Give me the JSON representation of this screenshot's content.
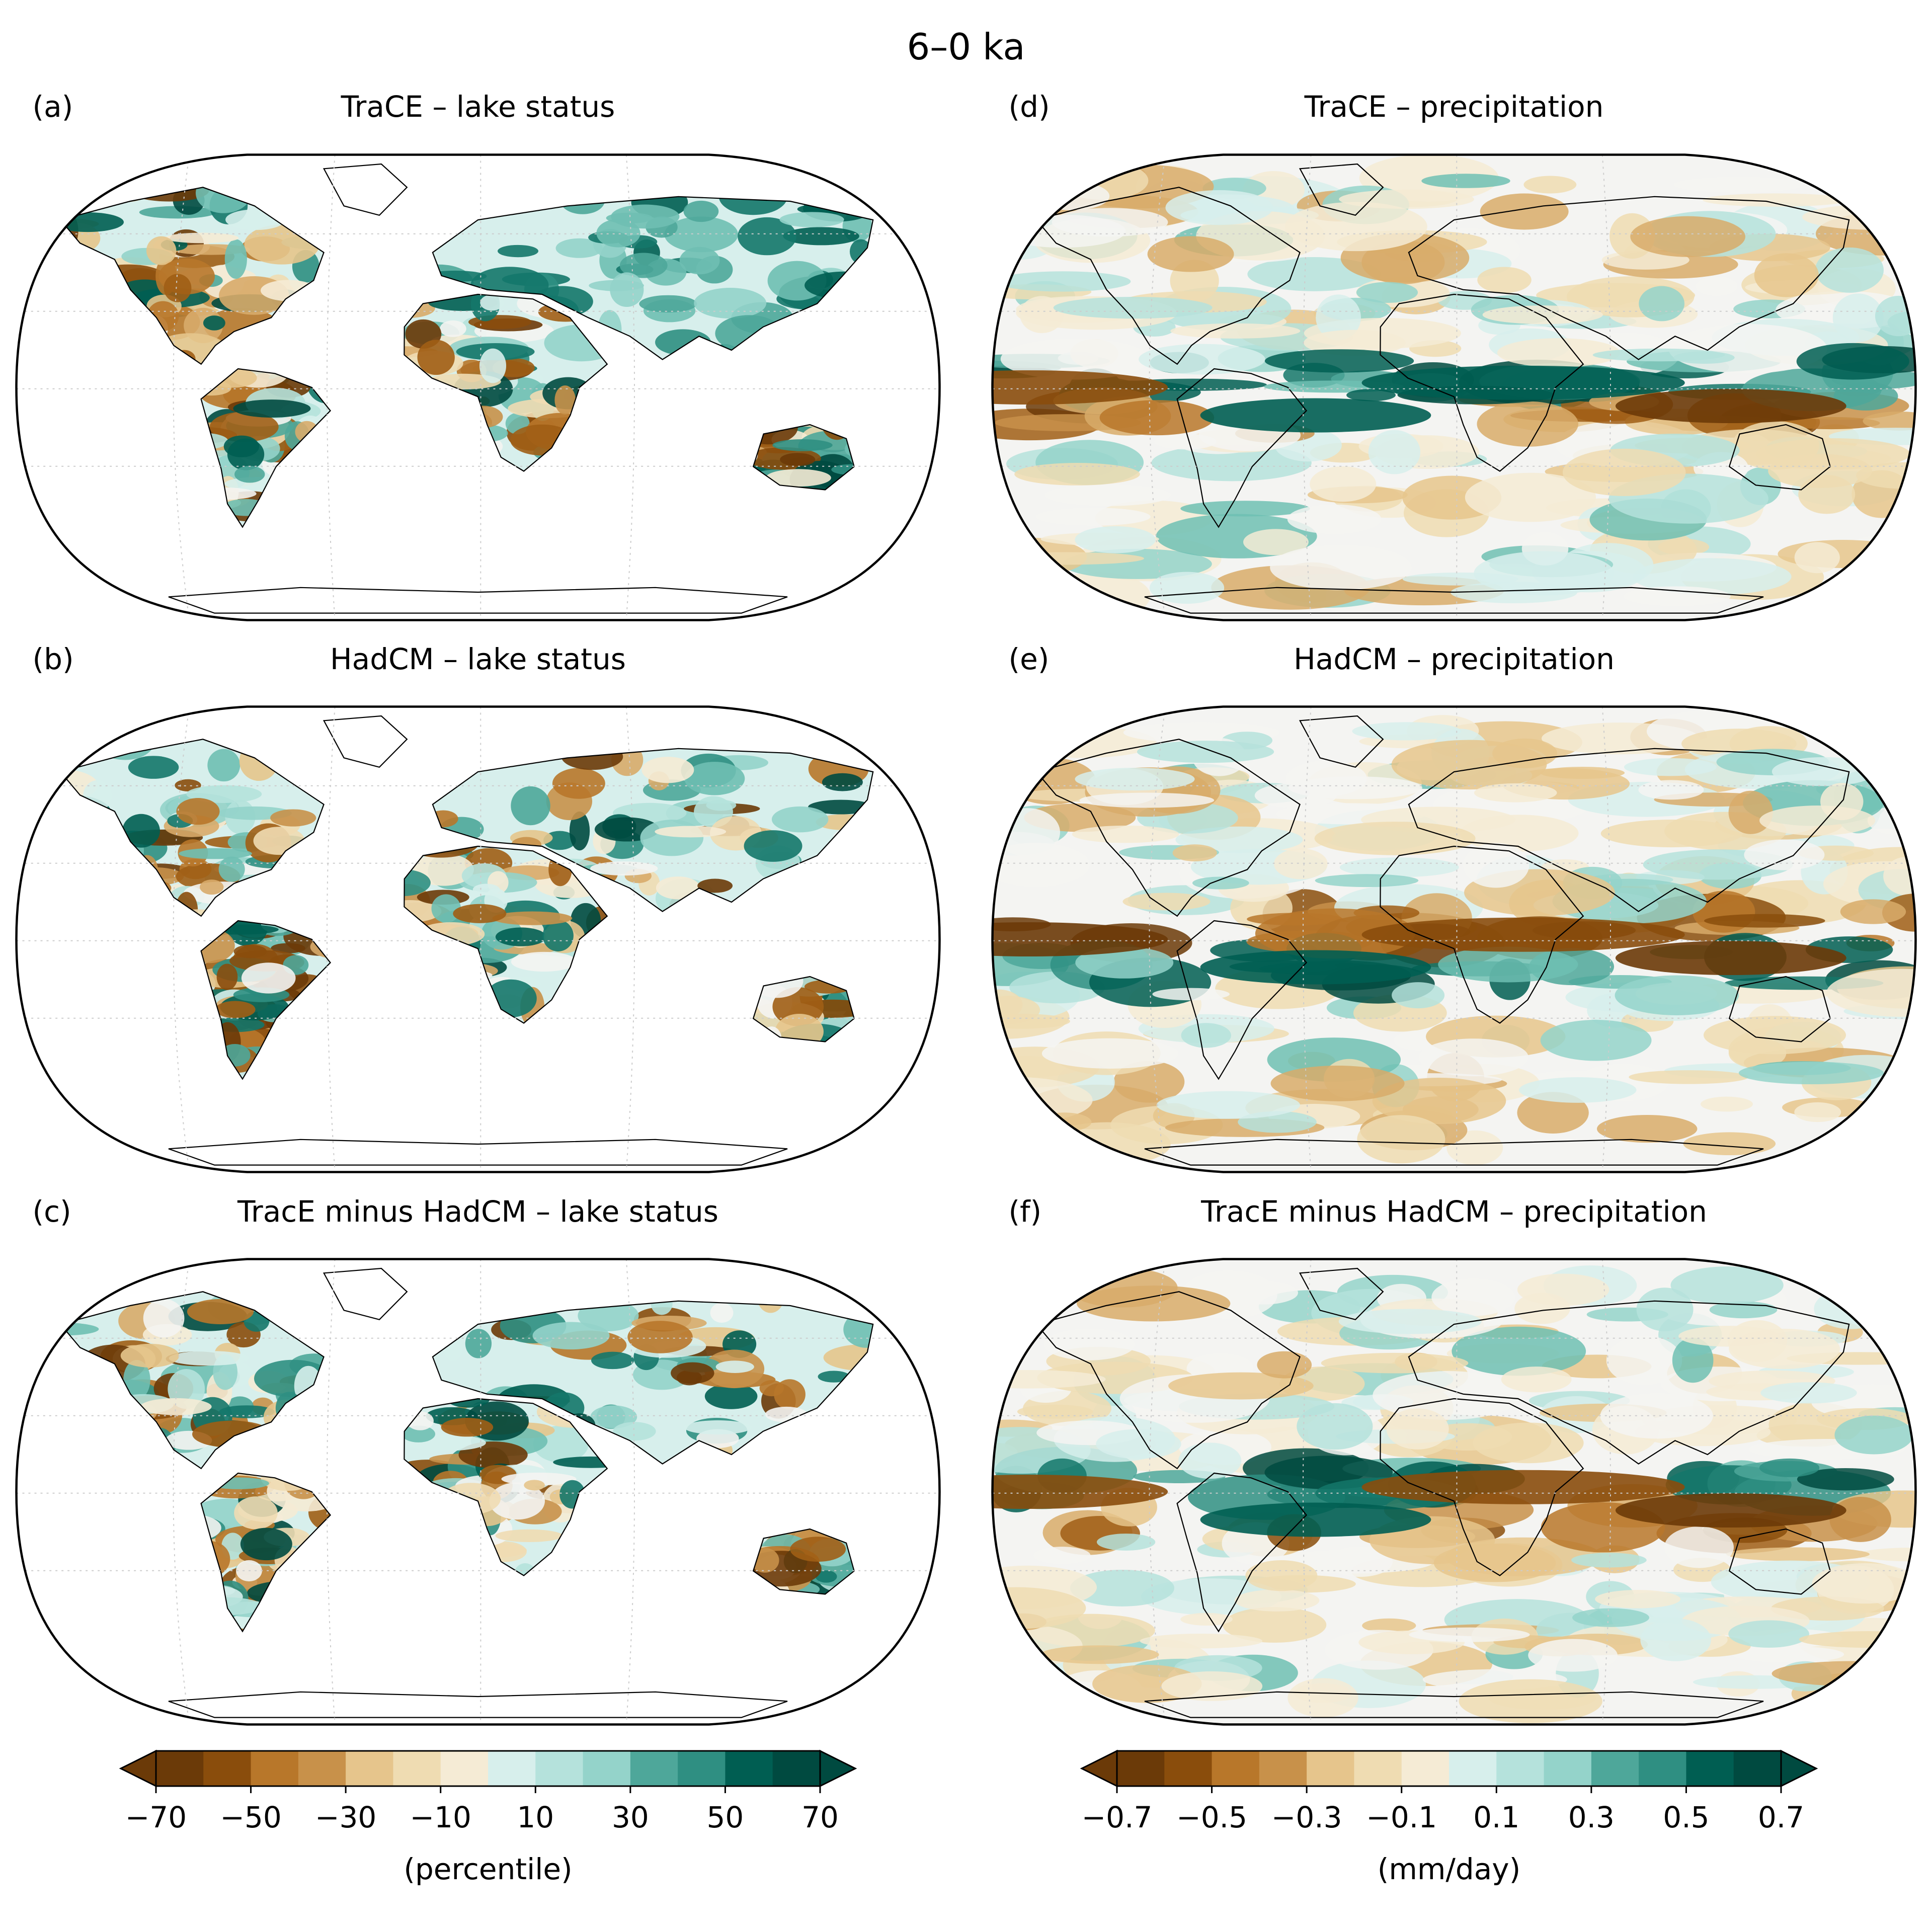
{
  "figure": {
    "title": "6–0 ka"
  },
  "panels": [
    {
      "id": "a",
      "letter": "(a)",
      "title": "TraCE – lake status",
      "kind": "lake"
    },
    {
      "id": "b",
      "letter": "(b)",
      "title": "HadCM – lake status",
      "kind": "lake"
    },
    {
      "id": "c",
      "letter": "(c)",
      "title": "TracE minus HadCM – lake status",
      "kind": "lake"
    },
    {
      "id": "d",
      "letter": "(d)",
      "title": "TraCE – precipitation",
      "kind": "precip"
    },
    {
      "id": "e",
      "letter": "(e)",
      "title": "HadCM – precipitation",
      "kind": "precip"
    },
    {
      "id": "f",
      "letter": "(f)",
      "title": "TracE minus HadCM – precipitation",
      "kind": "precip"
    }
  ],
  "colorbars": [
    {
      "id": "lake",
      "label": "(percentile)",
      "ticks": [
        "−70",
        "−50",
        "−30",
        "−10",
        "10",
        "30",
        "50",
        "70"
      ],
      "min": -70,
      "max": 70,
      "step": 5,
      "extend": "both"
    },
    {
      "id": "precip",
      "label": "(mm/day)",
      "ticks": [
        "−0.7",
        "−0.5",
        "−0.3",
        "−0.1",
        "0.1",
        "0.3",
        "0.5",
        "0.7"
      ],
      "min": -0.7,
      "max": 0.7,
      "step": 0.05,
      "extend": "both"
    }
  ],
  "palette": [
    "#6b3a08",
    "#8a4d0c",
    "#a05e15",
    "#b8772a",
    "#c8914a",
    "#d8ab6a",
    "#e6c58c",
    "#efdcb2",
    "#f5ebd5",
    "#f4f4f2",
    "#d7efec",
    "#b5e2dc",
    "#94d3ca",
    "#6fbfb3",
    "#4ea79a",
    "#2f8f82",
    "#14776a",
    "#005e52",
    "#004a40"
  ],
  "colors": {
    "ocean_lake": "#ffffff",
    "coast": "#000000",
    "grid": "#cccccc"
  }
}
